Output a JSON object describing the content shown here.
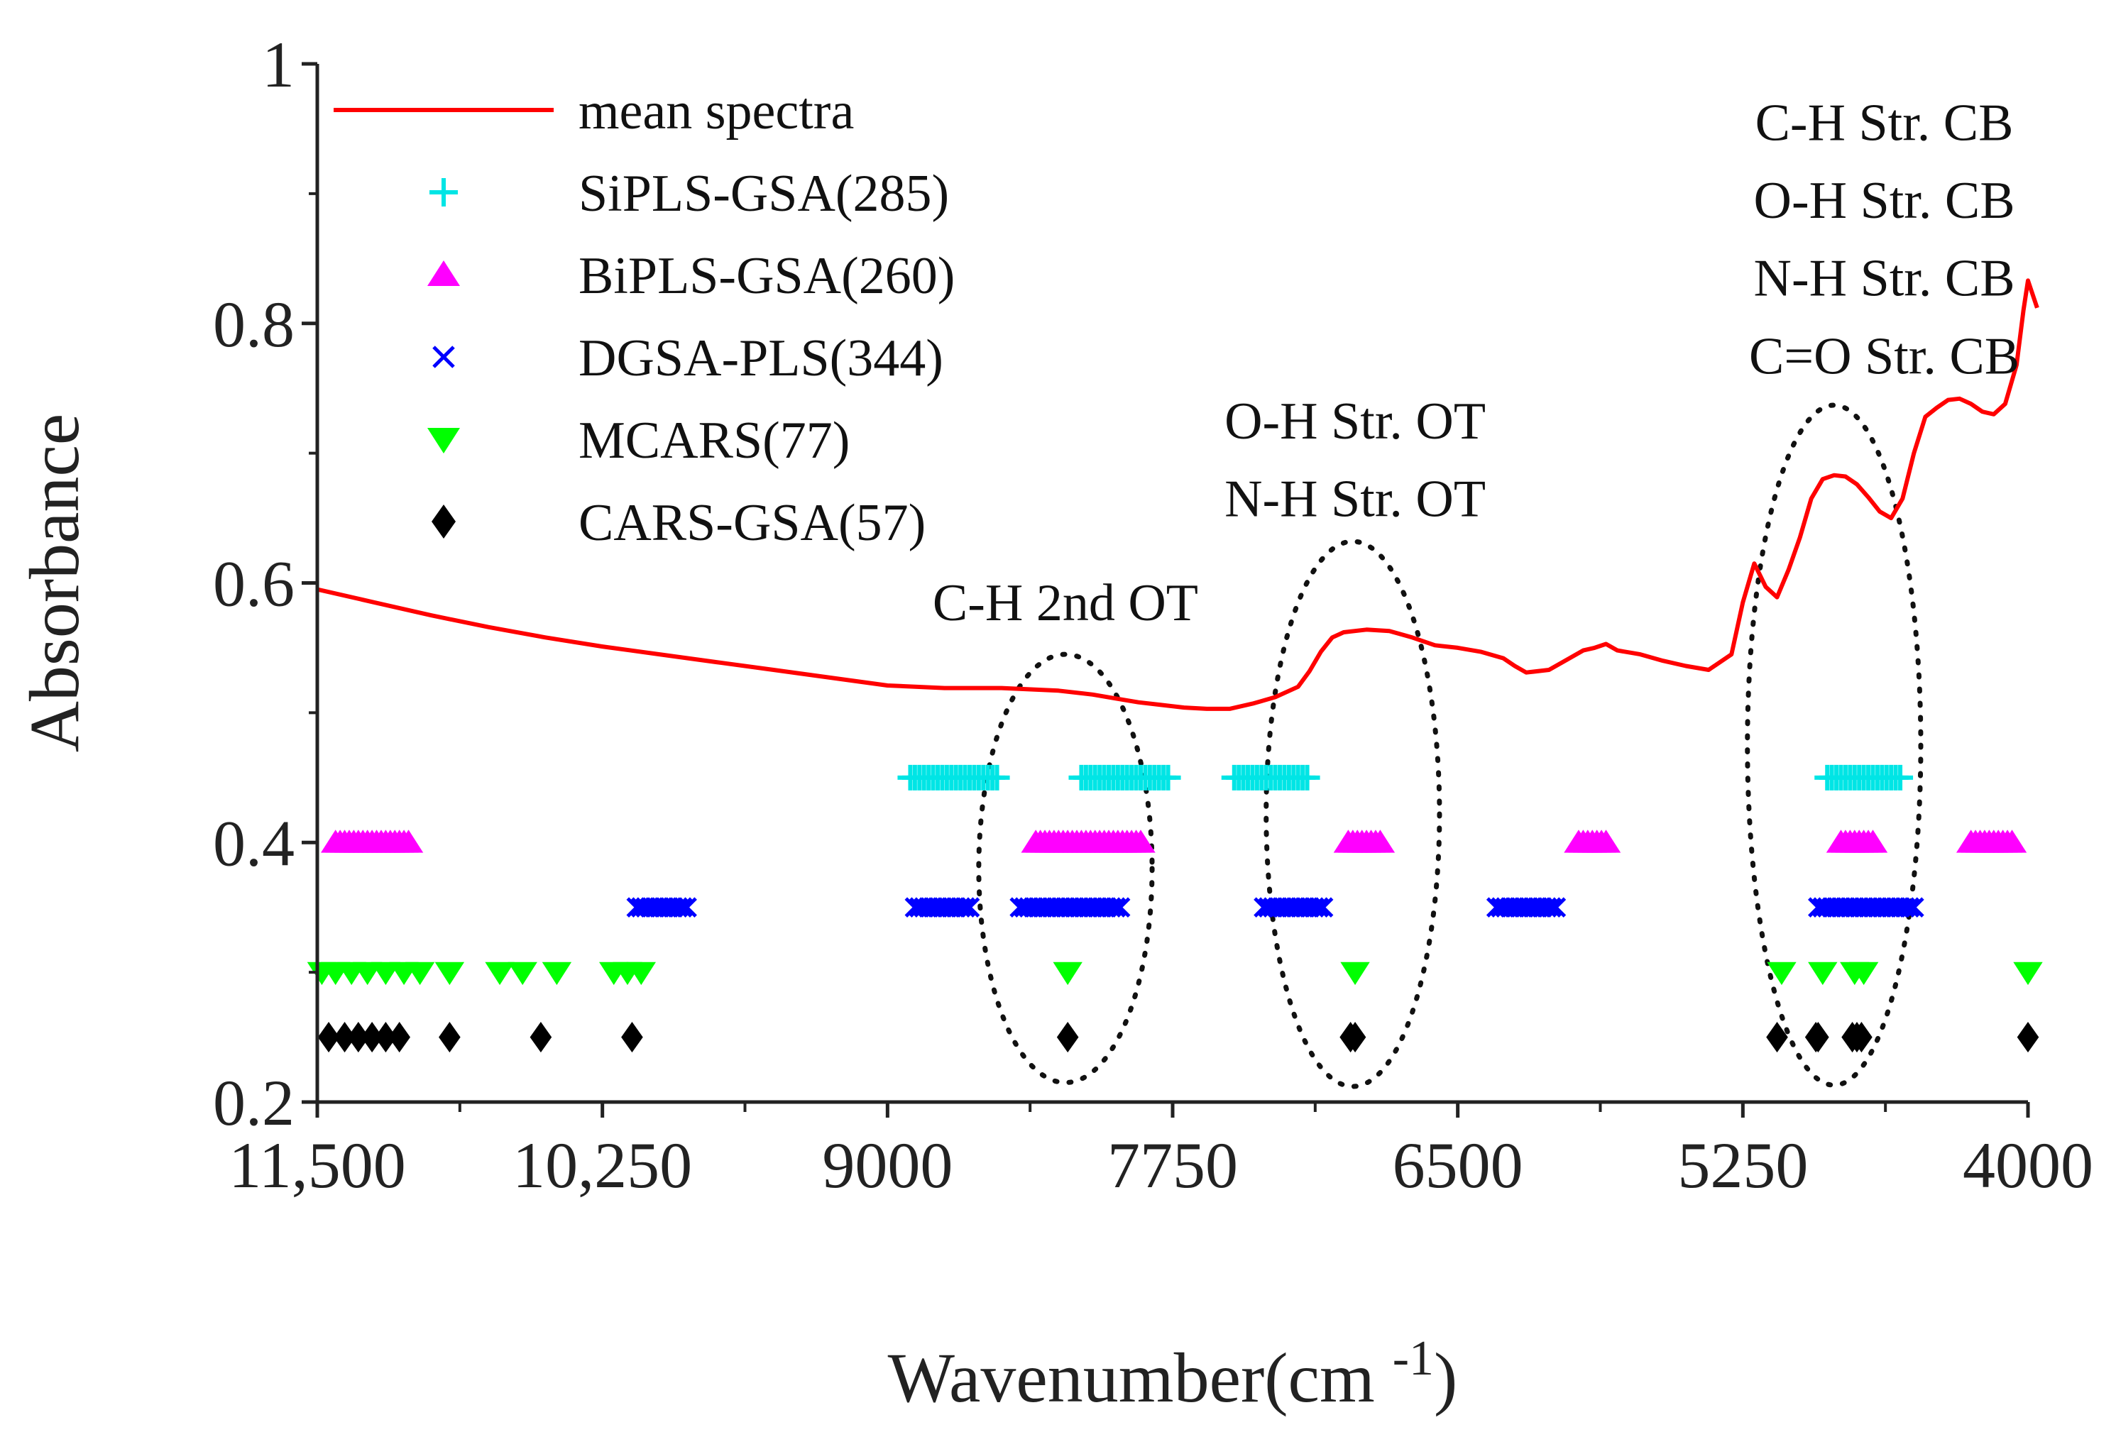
{
  "chart_data": {
    "type": "line",
    "xlabel": "Wavenumber(cm",
    "xlabel_sup": "-1",
    "xlabel_close": ")",
    "ylabel": "Absorbance",
    "xlim": [
      11500,
      4000
    ],
    "x_reversed": true,
    "ylim": [
      0.2,
      1.0
    ],
    "x_ticks": [
      {
        "value": 11500,
        "label": "11,500"
      },
      {
        "value": 10250,
        "label": "10,250"
      },
      {
        "value": 9000,
        "label": "9000"
      },
      {
        "value": 7750,
        "label": "7750"
      },
      {
        "value": 6500,
        "label": "6500"
      },
      {
        "value": 5250,
        "label": "5250"
      },
      {
        "value": 4000,
        "label": "4000"
      }
    ],
    "y_ticks": [
      {
        "value": 0.2,
        "label": "0.2"
      },
      {
        "value": 0.4,
        "label": "0.4"
      },
      {
        "value": 0.6,
        "label": "0.6"
      },
      {
        "value": 0.8,
        "label": "0.8"
      },
      {
        "value": 1.0,
        "label": "1"
      }
    ],
    "grid": false,
    "legend_position": "top-left",
    "line_series": {
      "name": "mean spectra",
      "color": "#ff0000",
      "x": [
        11500,
        11250,
        11000,
        10750,
        10500,
        10250,
        10000,
        9750,
        9500,
        9250,
        9000,
        8750,
        8500,
        8250,
        8100,
        8000,
        7900,
        7800,
        7700,
        7600,
        7500,
        7400,
        7300,
        7200,
        7150,
        7100,
        7050,
        7000,
        6900,
        6800,
        6700,
        6600,
        6500,
        6400,
        6300,
        6250,
        6200,
        6100,
        6050,
        5950,
        5900,
        5850,
        5800,
        5700,
        5600,
        5500,
        5400,
        5300,
        5250,
        5200,
        5150,
        5100,
        5050,
        5000,
        4950,
        4900,
        4850,
        4800,
        4750,
        4700,
        4650,
        4600,
        4550,
        4500,
        4450,
        4400,
        4350,
        4300,
        4250,
        4200,
        4150,
        4100,
        4050,
        4020,
        4000,
        3960
      ],
      "y": [
        0.595,
        0.585,
        0.575,
        0.566,
        0.558,
        0.551,
        0.545,
        0.539,
        0.533,
        0.527,
        0.521,
        0.519,
        0.519,
        0.517,
        0.514,
        0.511,
        0.508,
        0.506,
        0.504,
        0.503,
        0.503,
        0.507,
        0.512,
        0.52,
        0.532,
        0.547,
        0.558,
        0.562,
        0.564,
        0.563,
        0.558,
        0.552,
        0.55,
        0.547,
        0.542,
        0.536,
        0.531,
        0.533,
        0.538,
        0.548,
        0.55,
        0.553,
        0.548,
        0.545,
        0.54,
        0.536,
        0.533,
        0.545,
        0.585,
        0.615,
        0.597,
        0.589,
        0.61,
        0.635,
        0.665,
        0.68,
        0.683,
        0.682,
        0.676,
        0.666,
        0.655,
        0.65,
        0.665,
        0.7,
        0.728,
        0.735,
        0.741,
        0.742,
        0.738,
        0.732,
        0.73,
        0.738,
        0.768,
        0.81,
        0.833,
        0.812
      ]
    },
    "marker_series": [
      {
        "name": "SiPLS-GSA(285)",
        "marker": "plus",
        "color": "#00e5e5",
        "y": 0.45,
        "x": [
          8900,
          8880,
          8860,
          8840,
          8820,
          8800,
          8780,
          8760,
          8740,
          8720,
          8700,
          8680,
          8660,
          8640,
          8620,
          8600,
          8580,
          8560,
          8540,
          8520,
          8150,
          8130,
          8110,
          8090,
          8070,
          8050,
          8030,
          8010,
          7990,
          7970,
          7950,
          7930,
          7910,
          7890,
          7870,
          7850,
          7830,
          7810,
          7790,
          7770,
          7480,
          7460,
          7440,
          7420,
          7400,
          7380,
          7360,
          7340,
          7320,
          7300,
          7280,
          7260,
          7240,
          7220,
          7200,
          7180,
          7160,
          4880,
          4860,
          4840,
          4820,
          4800,
          4780,
          4760,
          4740,
          4720,
          4700,
          4680,
          4660,
          4640,
          4620,
          4600,
          4580,
          4560
        ]
      },
      {
        "name": "BiPLS-GSA(260)",
        "marker": "triangle-up",
        "color": "#ff00ff",
        "y": 0.4,
        "x": [
          11420,
          11400,
          11380,
          11360,
          11340,
          11320,
          11300,
          11280,
          11260,
          11240,
          11220,
          11200,
          11180,
          11160,
          11140,
          11120,
          11100,
          8350,
          8330,
          8310,
          8290,
          8270,
          8250,
          8230,
          8210,
          8190,
          8170,
          8150,
          8130,
          8110,
          8090,
          8070,
          8050,
          8030,
          8010,
          7990,
          7970,
          7950,
          7930,
          7910,
          7890,
          6980,
          6960,
          6940,
          6920,
          6900,
          6880,
          6860,
          6840,
          5970,
          5950,
          5930,
          5910,
          5890,
          5870,
          5850,
          4820,
          4800,
          4780,
          4760,
          4740,
          4720,
          4700,
          4680,
          4250,
          4230,
          4210,
          4190,
          4170,
          4150,
          4130,
          4110,
          4090,
          4070
        ]
      },
      {
        "name": "DGSA-PLS(344)",
        "marker": "x",
        "color": "#0000ff",
        "y": 0.35,
        "x": [
          10100,
          10080,
          10060,
          10040,
          10020,
          10000,
          9980,
          9960,
          9940,
          9920,
          9900,
          9880,
          8880,
          8860,
          8840,
          8820,
          8800,
          8780,
          8760,
          8740,
          8720,
          8700,
          8680,
          8660,
          8640,
          8420,
          8400,
          8380,
          8360,
          8340,
          8320,
          8300,
          8280,
          8260,
          8240,
          8220,
          8200,
          8180,
          8160,
          8140,
          8120,
          8100,
          8080,
          8060,
          8040,
          8020,
          8000,
          7980,
          7350,
          7330,
          7310,
          7290,
          7270,
          7250,
          7230,
          7210,
          7190,
          7170,
          7150,
          7130,
          7110,
          7090,
          6330,
          6310,
          6290,
          6270,
          6250,
          6230,
          6210,
          6190,
          6170,
          6150,
          6130,
          6110,
          6090,
          6070,
          4920,
          4900,
          4880,
          4860,
          4840,
          4820,
          4800,
          4780,
          4760,
          4740,
          4720,
          4700,
          4680,
          4660,
          4640,
          4620,
          4600,
          4580,
          4560,
          4540,
          4520,
          4500
        ]
      },
      {
        "name": "MCARS(77)",
        "marker": "triangle-down",
        "color": "#00ff00",
        "y": 0.3,
        "x": [
          11480,
          11420,
          11350,
          11280,
          11200,
          11120,
          11050,
          10920,
          10700,
          10600,
          10450,
          10200,
          10140,
          10080,
          8210,
          6950,
          5080,
          4900,
          4720,
          4760,
          4000
        ]
      },
      {
        "name": "CARS-GSA(57)",
        "marker": "diamond",
        "color": "#000000",
        "y": 0.25,
        "x": [
          11450,
          11380,
          11320,
          11260,
          11200,
          11140,
          10920,
          10520,
          10120,
          8210,
          6970,
          6950,
          5100,
          4930,
          4920,
          4770,
          4750,
          4730,
          4000
        ]
      }
    ],
    "annotations": [
      {
        "text": "C-H 2nd OT",
        "x": 8220,
        "y": 0.585
      },
      {
        "text": "O-H Str. OT",
        "x": 6950,
        "y": 0.725
      },
      {
        "text": "N-H Str. OT",
        "x": 6950,
        "y": 0.665
      },
      {
        "text": "C-H Str. CB",
        "x": 4630,
        "y": 0.955
      },
      {
        "text": "O-H Str. CB",
        "x": 4630,
        "y": 0.895
      },
      {
        "text": "N-H Str. CB",
        "x": 4630,
        "y": 0.835
      },
      {
        "text": "C=O Str. CB",
        "x": 4630,
        "y": 0.775
      }
    ],
    "ellipses": [
      {
        "cx": 8220,
        "cy": 0.38,
        "rx": 380,
        "ry": 0.165
      },
      {
        "cx": 6960,
        "cy": 0.422,
        "rx": 380,
        "ry": 0.21
      },
      {
        "cx": 4850,
        "cy": 0.475,
        "rx": 380,
        "ry": 0.262
      }
    ]
  }
}
